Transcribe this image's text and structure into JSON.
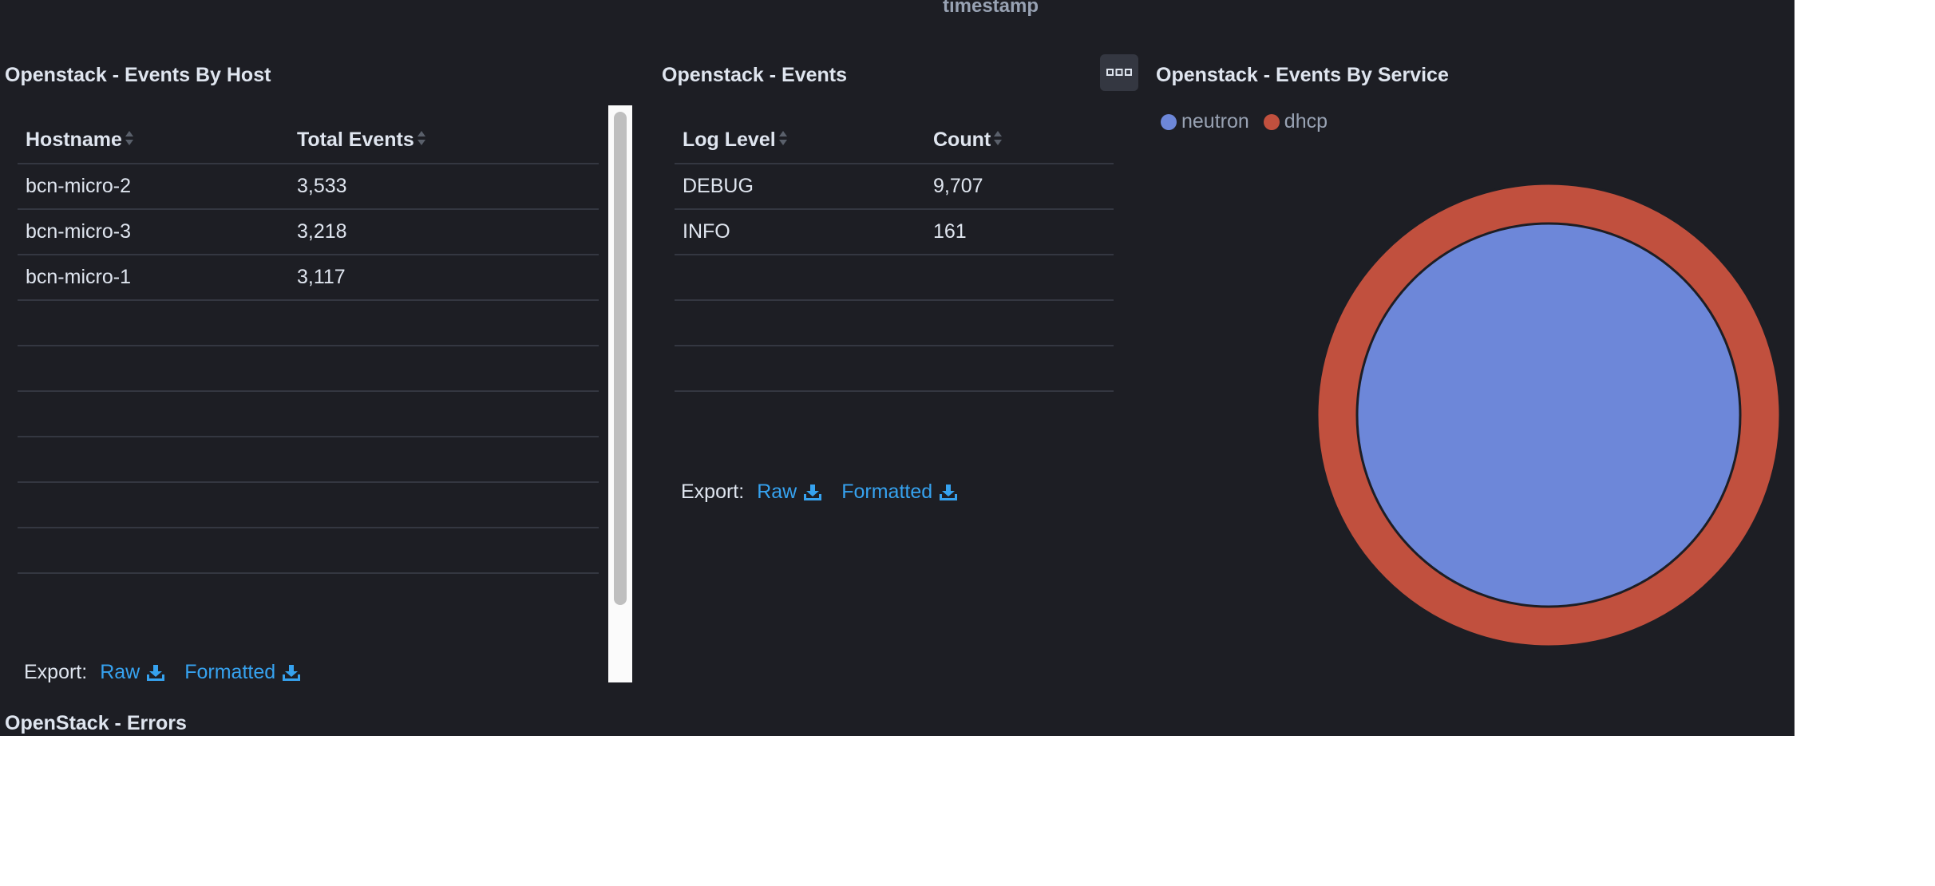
{
  "top_axis_label": "timestamp",
  "panels": {
    "events_by_host": {
      "title": "Openstack - Events By Host",
      "columns": [
        "Hostname",
        "Total Events"
      ],
      "rows": [
        [
          "bcn-micro-2",
          "3,533"
        ],
        [
          "bcn-micro-3",
          "3,218"
        ],
        [
          "bcn-micro-1",
          "3,117"
        ]
      ],
      "export": {
        "label": "Export:",
        "raw": "Raw",
        "formatted": "Formatted"
      }
    },
    "events": {
      "title": "Openstack - Events",
      "columns": [
        "Log Level",
        "Count"
      ],
      "rows": [
        [
          "DEBUG",
          "9,707"
        ],
        [
          "INFO",
          "161"
        ]
      ],
      "export": {
        "label": "Export:",
        "raw": "Raw",
        "formatted": "Formatted"
      }
    },
    "events_by_service": {
      "title": "Openstack - Events By Service",
      "options_icon": "ellipsis-icon"
    },
    "errors": {
      "title": "OpenStack - Errors"
    }
  },
  "colors": {
    "background": "#1d1e24",
    "link": "#36a2ef",
    "neutron": "#6d87d9",
    "dhcp": "#c1503e"
  },
  "chart_data": {
    "type": "pie",
    "layout": "nested-rings",
    "legend": "top-left",
    "legend_entries": [
      "neutron",
      "dhcp"
    ],
    "rings": [
      {
        "level": "inner",
        "series": "neutron",
        "slices": [
          {
            "label": "neutron",
            "share": 1.0
          }
        ]
      },
      {
        "level": "outer",
        "series": "dhcp",
        "slices": [
          {
            "label": "dhcp",
            "share": 1.0
          }
        ]
      }
    ]
  }
}
